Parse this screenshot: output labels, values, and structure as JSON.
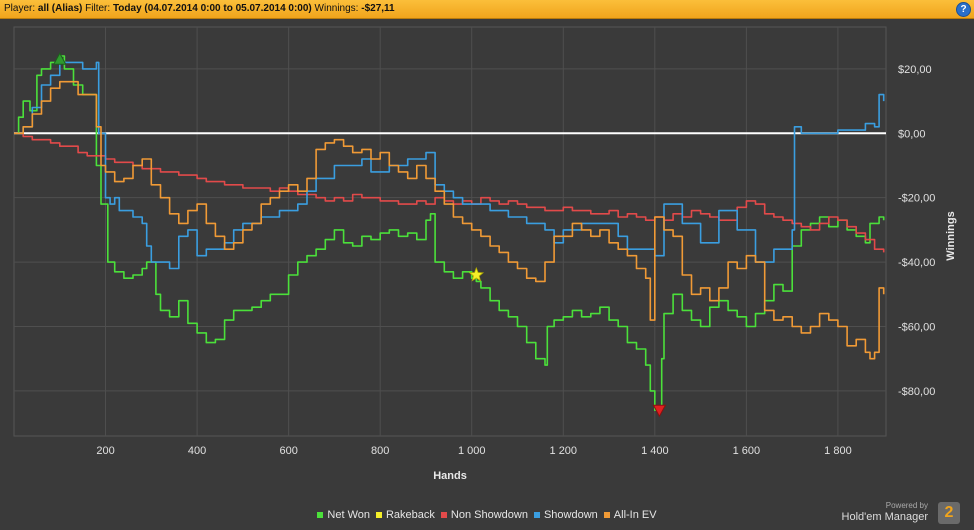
{
  "header": {
    "player_label": "Player:",
    "player_value": "all (Alias)",
    "filter_label": "Filter:",
    "filter_value": "Today (04.07.2014 0:00 to 05.07.2014 0:00)",
    "winnings_label": "Winnings:",
    "winnings_value": "-$27,11",
    "help_glyph": "?"
  },
  "branding": {
    "powered_by": "Powered by",
    "product": "Hold'em Manager",
    "logo_digit": "2"
  },
  "chart_data": {
    "type": "line",
    "xlabel": "Hands",
    "ylabel": "Winnings",
    "xlim": [
      0,
      1905
    ],
    "ylim": [
      -94,
      33
    ],
    "x_ticks": [
      200,
      400,
      600,
      800,
      1000,
      1200,
      1400,
      1600,
      1800
    ],
    "x_tick_labels": [
      "200",
      "400",
      "600",
      "800",
      "1 000",
      "1 200",
      "1 400",
      "1 600",
      "1 800"
    ],
    "y_ticks": [
      20,
      0,
      -20,
      -40,
      -60,
      -80
    ],
    "y_tick_labels": [
      "$20,00",
      "$0,00",
      "-$20,00",
      "-$40,00",
      "-$60,00",
      "-$80,00"
    ],
    "grid": true,
    "zero_line": true,
    "legend_position": "bottom",
    "series": [
      {
        "name": "Net Won",
        "color": "#4be03a",
        "x": [
          0,
          5,
          10,
          20,
          35,
          50,
          60,
          80,
          100,
          110,
          130,
          150,
          180,
          190,
          200,
          205,
          220,
          240,
          260,
          280,
          290,
          310,
          320,
          340,
          360,
          380,
          400,
          420,
          440,
          460,
          480,
          500,
          520,
          540,
          560,
          580,
          600,
          620,
          640,
          660,
          680,
          700,
          720,
          740,
          760,
          780,
          800,
          820,
          840,
          860,
          880,
          900,
          910,
          920,
          940,
          960,
          980,
          1000,
          1010,
          1020,
          1040,
          1060,
          1080,
          1100,
          1120,
          1140,
          1160,
          1165,
          1180,
          1200,
          1220,
          1240,
          1260,
          1280,
          1300,
          1320,
          1340,
          1360,
          1380,
          1390,
          1400,
          1410,
          1415,
          1420,
          1440,
          1460,
          1480,
          1500,
          1520,
          1540,
          1560,
          1580,
          1600,
          1620,
          1640,
          1660,
          1680,
          1700,
          1720,
          1740,
          1760,
          1780,
          1800,
          1820,
          1840,
          1860,
          1870,
          1880,
          1890,
          1900
        ],
        "y": [
          0,
          0,
          5,
          10,
          7,
          18,
          20,
          22,
          24,
          20,
          15,
          12,
          -10,
          -22,
          -22,
          -40,
          -43,
          -45,
          -44,
          -42,
          -40,
          -50,
          -55,
          -57,
          -52,
          -59,
          -62,
          -65,
          -64,
          -58,
          -55,
          -55,
          -54,
          -52,
          -50,
          -50,
          -44,
          -40,
          -38,
          -36,
          -33,
          -30,
          -34,
          -35,
          -32,
          -33,
          -31,
          -30,
          -32,
          -31,
          -33,
          -27,
          -25,
          -40,
          -43,
          -45,
          -43,
          -45,
          -46,
          -48,
          -52,
          -55,
          -57,
          -60,
          -65,
          -70,
          -72,
          -60,
          -58,
          -57,
          -55,
          -57,
          -56,
          -54,
          -58,
          -60,
          -65,
          -67,
          -72,
          -80,
          -86,
          -85,
          -70,
          -56,
          -50,
          -55,
          -58,
          -60,
          -54,
          -52,
          -55,
          -57,
          -60,
          -56,
          -52,
          -47,
          -49,
          -35,
          -30,
          -28,
          -26,
          -29,
          -27,
          -30,
          -32,
          -34,
          -28,
          -28,
          -26,
          -27
        ]
      },
      {
        "name": "Non Showdown",
        "color": "#e24a4a",
        "x": [
          0,
          20,
          40,
          60,
          80,
          100,
          120,
          140,
          160,
          180,
          200,
          220,
          240,
          260,
          280,
          300,
          320,
          340,
          360,
          380,
          400,
          420,
          440,
          460,
          480,
          500,
          520,
          540,
          560,
          580,
          600,
          620,
          640,
          660,
          680,
          700,
          720,
          740,
          760,
          780,
          800,
          820,
          840,
          860,
          880,
          900,
          920,
          940,
          960,
          980,
          1000,
          1020,
          1040,
          1060,
          1080,
          1100,
          1120,
          1140,
          1160,
          1180,
          1200,
          1220,
          1240,
          1260,
          1280,
          1300,
          1320,
          1340,
          1360,
          1380,
          1400,
          1420,
          1440,
          1460,
          1480,
          1500,
          1520,
          1540,
          1560,
          1580,
          1600,
          1620,
          1640,
          1660,
          1680,
          1700,
          1720,
          1740,
          1760,
          1780,
          1800,
          1820,
          1840,
          1860,
          1880,
          1900
        ],
        "y": [
          0,
          -1,
          -2,
          -2,
          -3,
          -4,
          -4,
          -6,
          -7,
          -7,
          -8,
          -9,
          -9,
          -10,
          -11,
          -11,
          -12,
          -12,
          -13,
          -13,
          -14,
          -15,
          -15,
          -16,
          -16,
          -17,
          -17,
          -17,
          -18,
          -17,
          -18,
          -19,
          -19,
          -20,
          -21,
          -20,
          -21,
          -19,
          -20,
          -20,
          -21,
          -21,
          -22,
          -22,
          -21,
          -22,
          -20,
          -21,
          -22,
          -21,
          -22,
          -20,
          -21,
          -22,
          -21,
          -22,
          -23,
          -23,
          -24,
          -24,
          -23,
          -24,
          -24,
          -25,
          -25,
          -24,
          -26,
          -25,
          -26,
          -27,
          -26,
          -27,
          -25,
          -26,
          -24,
          -25,
          -26,
          -27,
          -27,
          -23,
          -21,
          -22,
          -25,
          -26,
          -27,
          -28,
          -29,
          -30,
          -28,
          -26,
          -27,
          -29,
          -31,
          -33,
          -36,
          -37
        ]
      },
      {
        "name": "Showdown",
        "color": "#3a9ee0",
        "x": [
          0,
          20,
          40,
          60,
          80,
          100,
          140,
          150,
          180,
          185,
          200,
          210,
          220,
          230,
          260,
          280,
          290,
          300,
          340,
          360,
          380,
          400,
          420,
          460,
          480,
          500,
          540,
          580,
          620,
          640,
          660,
          700,
          760,
          780,
          800,
          820,
          860,
          900,
          920,
          940,
          960,
          980,
          1000,
          1040,
          1080,
          1120,
          1160,
          1180,
          1200,
          1240,
          1280,
          1320,
          1340,
          1380,
          1400,
          1420,
          1460,
          1500,
          1540,
          1580,
          1620,
          1660,
          1700,
          1705,
          1720,
          1760,
          1780,
          1800,
          1840,
          1860,
          1880,
          1890,
          1900
        ],
        "y": [
          0,
          2,
          8,
          15,
          18,
          22,
          22,
          20,
          22,
          0,
          -20,
          -22,
          -20,
          -24,
          -26,
          -28,
          -35,
          -40,
          -42,
          -32,
          -30,
          -38,
          -36,
          -34,
          -30,
          -28,
          -26,
          -24,
          -22,
          -18,
          -14,
          -10,
          -8,
          -12,
          -12,
          -10,
          -8,
          -6,
          -16,
          -18,
          -20,
          -22,
          -22,
          -24,
          -26,
          -28,
          -30,
          -34,
          -30,
          -28,
          -28,
          -32,
          -36,
          -36,
          -38,
          -22,
          -28,
          -34,
          -24,
          -30,
          -40,
          -36,
          -30,
          2,
          0,
          0,
          0,
          1,
          1,
          3,
          2,
          12,
          10
        ]
      },
      {
        "name": "All-In EV",
        "color": "#f09a36",
        "x": [
          0,
          20,
          40,
          60,
          80,
          100,
          140,
          180,
          190,
          200,
          220,
          240,
          260,
          280,
          300,
          320,
          340,
          360,
          380,
          400,
          420,
          440,
          460,
          480,
          500,
          520,
          540,
          560,
          580,
          600,
          620,
          640,
          660,
          680,
          700,
          720,
          740,
          760,
          780,
          800,
          820,
          840,
          860,
          880,
          900,
          920,
          940,
          960,
          980,
          1000,
          1020,
          1040,
          1060,
          1080,
          1100,
          1120,
          1140,
          1160,
          1180,
          1200,
          1220,
          1240,
          1260,
          1280,
          1300,
          1320,
          1340,
          1360,
          1380,
          1390,
          1400,
          1420,
          1440,
          1460,
          1480,
          1500,
          1520,
          1540,
          1560,
          1580,
          1600,
          1620,
          1640,
          1660,
          1680,
          1700,
          1720,
          1740,
          1760,
          1780,
          1800,
          1820,
          1840,
          1860,
          1870,
          1880,
          1890,
          1900
        ],
        "y": [
          0,
          2,
          6,
          10,
          14,
          16,
          12,
          2,
          -10,
          -12,
          -15,
          -14,
          -10,
          -8,
          -16,
          -20,
          -25,
          -28,
          -24,
          -22,
          -28,
          -32,
          -36,
          -34,
          -30,
          -28,
          -22,
          -20,
          -18,
          -16,
          -18,
          -14,
          -5,
          -3,
          -2,
          -4,
          -6,
          -5,
          -8,
          -6,
          -10,
          -12,
          -14,
          -10,
          -14,
          -18,
          -22,
          -26,
          -28,
          -30,
          -32,
          -35,
          -37,
          -40,
          -42,
          -45,
          -46,
          -40,
          -32,
          -32,
          -28,
          -30,
          -32,
          -30,
          -34,
          -36,
          -38,
          -42,
          -45,
          -58,
          -26,
          -30,
          -32,
          -44,
          -50,
          -48,
          -52,
          -48,
          -40,
          -42,
          -38,
          -40,
          -55,
          -58,
          -57,
          -60,
          -62,
          -60,
          -56,
          -58,
          -60,
          -66,
          -64,
          -68,
          -70,
          -68,
          -48,
          -50
        ]
      }
    ],
    "markers": [
      {
        "kind": "max",
        "shape": "triangle-up",
        "color": "#2e9a2e",
        "x": 100,
        "y": 23
      },
      {
        "kind": "rakeback",
        "shape": "star",
        "color": "#f5ef2a",
        "x": 1010,
        "y": -44
      },
      {
        "kind": "min",
        "shape": "triangle-down",
        "color": "#e02020",
        "x": 1410,
        "y": -86
      }
    ],
    "legend": [
      {
        "name": "Net Won",
        "color": "#4be03a"
      },
      {
        "name": "Rakeback",
        "color": "#f5ef2a"
      },
      {
        "name": "Non Showdown",
        "color": "#e24a4a"
      },
      {
        "name": "Showdown",
        "color": "#3a9ee0"
      },
      {
        "name": "All-In EV",
        "color": "#f09a36"
      }
    ]
  }
}
